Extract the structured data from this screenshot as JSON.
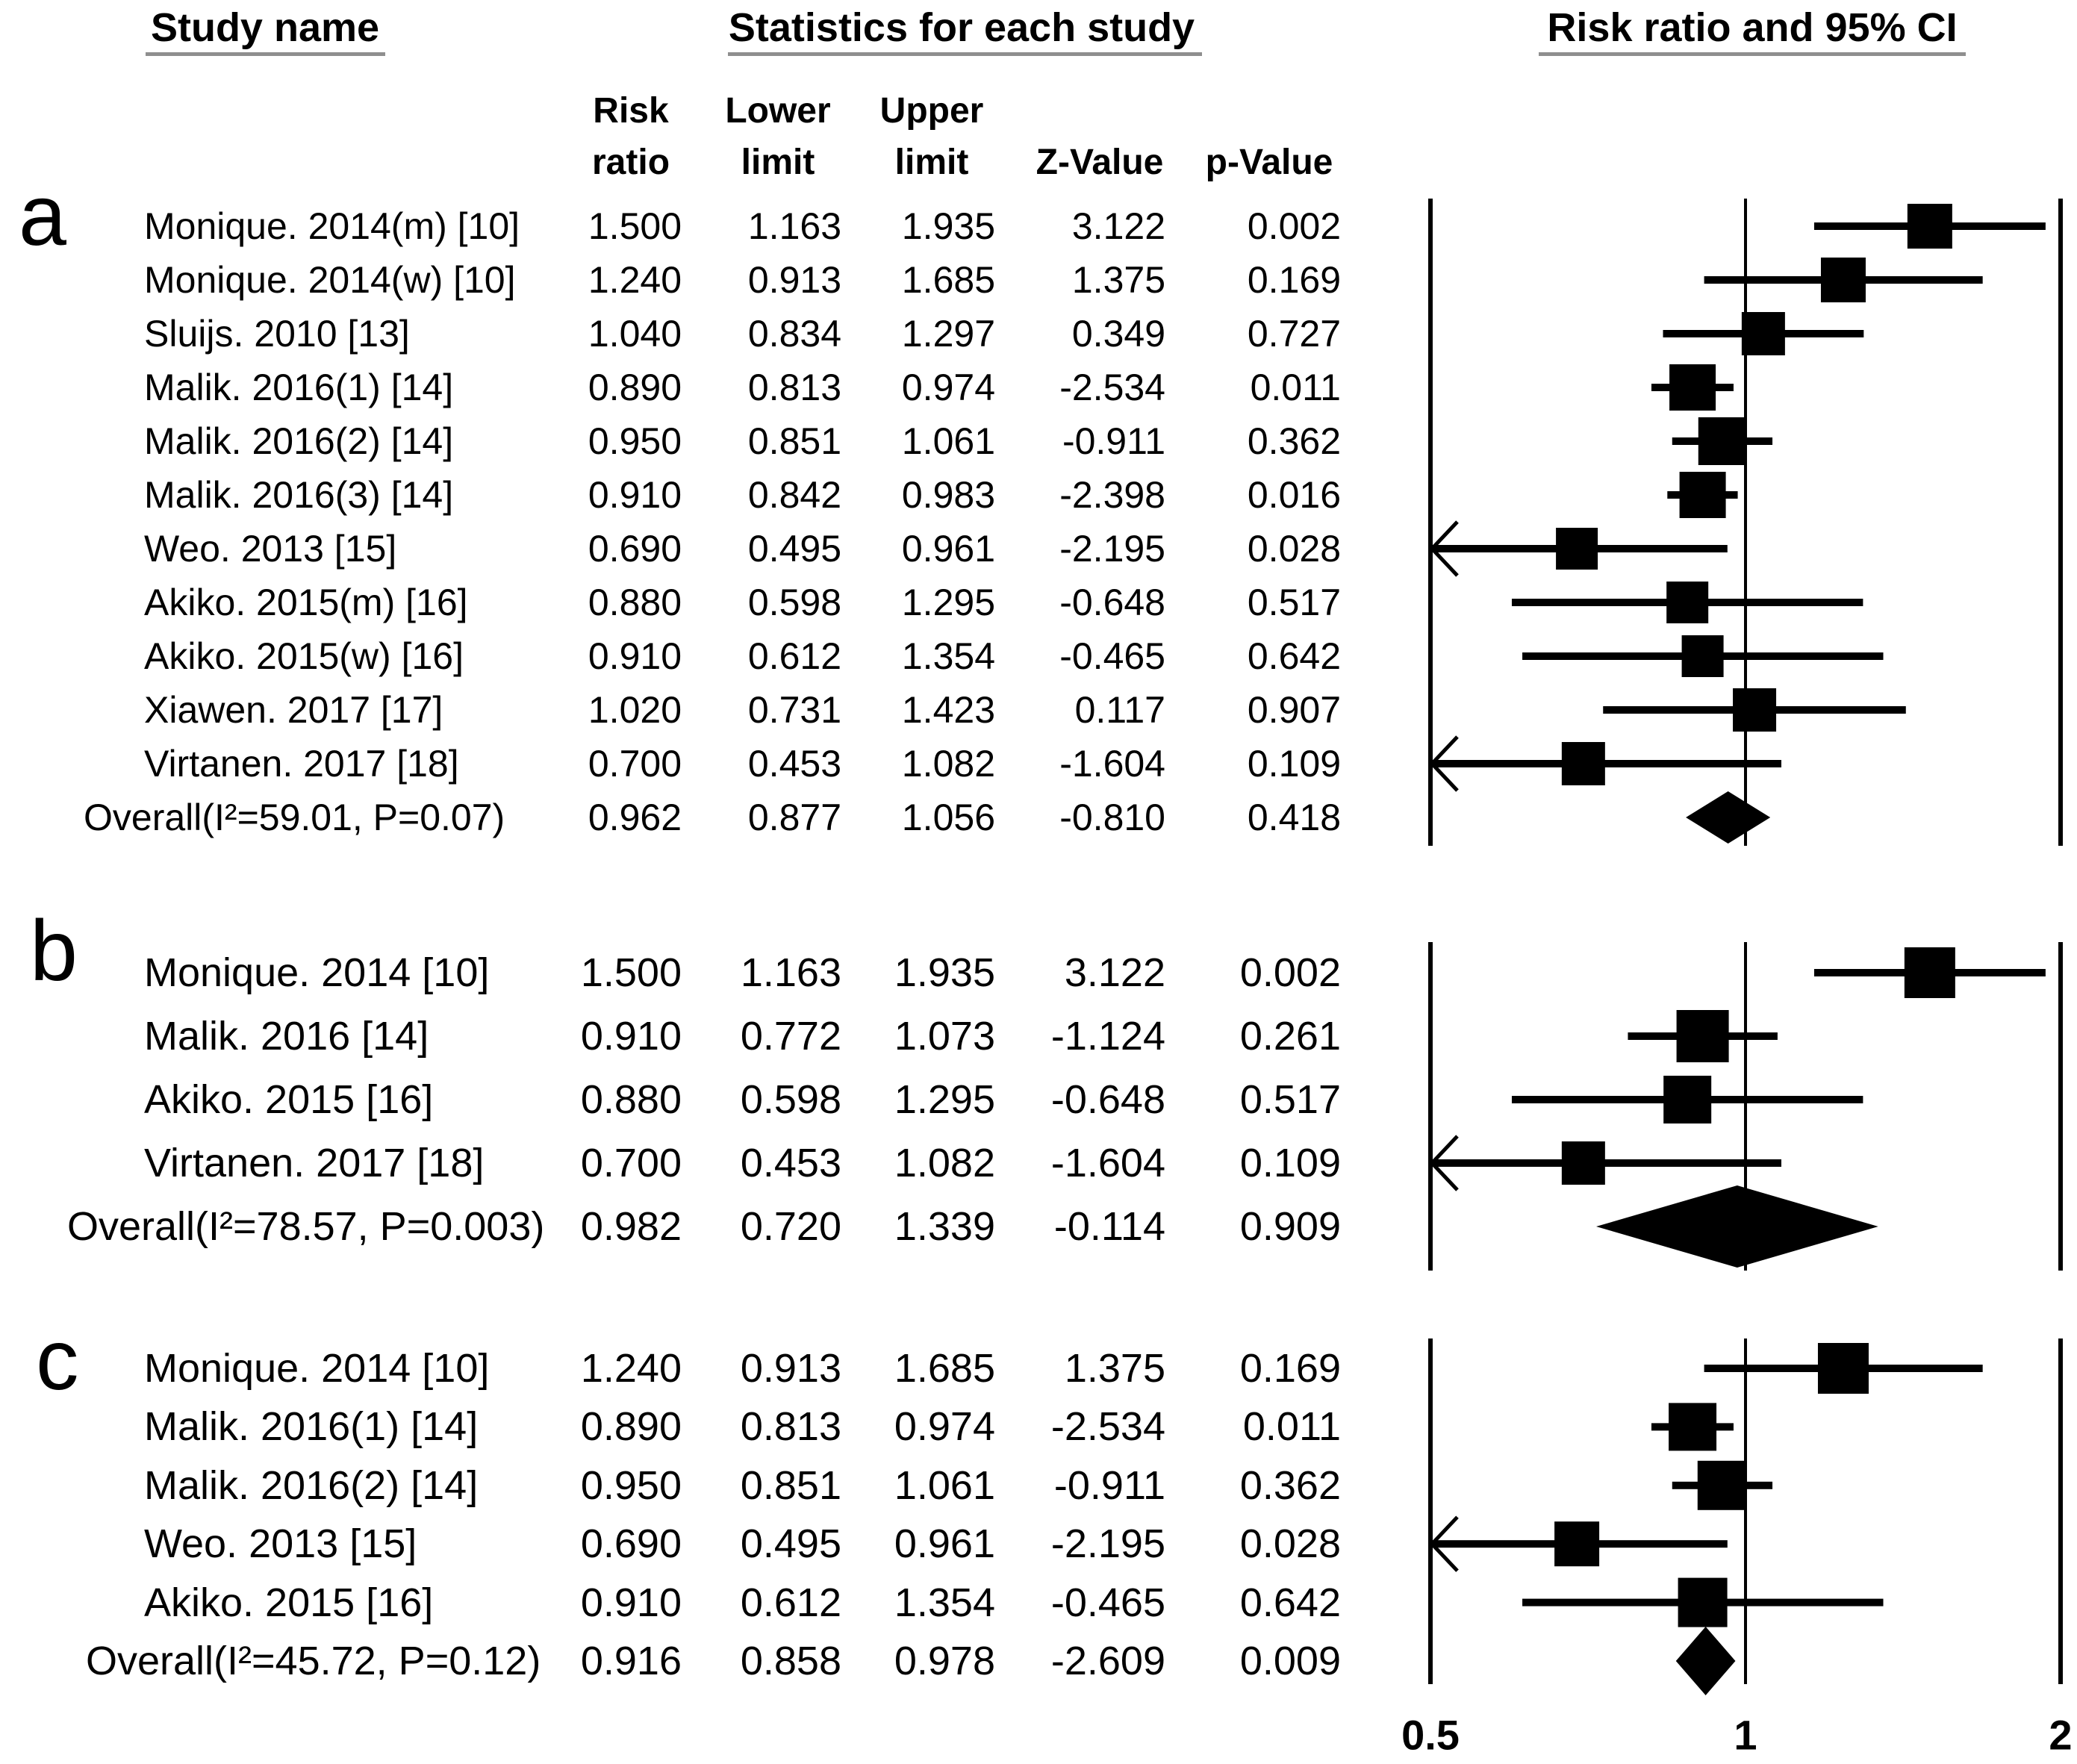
{
  "header": {
    "study": "Study name",
    "stats": "Statistics for each study",
    "plot": "Risk ratio and 95% CI"
  },
  "stat_columns": [
    "Risk\nratio",
    "Lower\nlimit",
    "Upper\nlimit",
    "Z-Value",
    "p-Value"
  ],
  "x_axis": {
    "scale": "log",
    "tick_labels": [
      "0.5",
      "1",
      "2"
    ],
    "tick_values": [
      0.5,
      1,
      2
    ],
    "range": [
      0.5,
      2
    ]
  },
  "chart_data": [
    {
      "panel": "a",
      "type": "forest",
      "studies": [
        {
          "name": "Monique. 2014(m) [10]",
          "risk_ratio": "1.500",
          "lower": "1.163",
          "upper": "1.935",
          "z": "3.122",
          "p": "0.002",
          "size": 60
        },
        {
          "name": "Monique. 2014(w) [10]",
          "risk_ratio": "1.240",
          "lower": "0.913",
          "upper": "1.685",
          "z": "1.375",
          "p": "0.169",
          "size": 60
        },
        {
          "name": "Sluijs. 2010 [13]",
          "risk_ratio": "1.040",
          "lower": "0.834",
          "upper": "1.297",
          "z": "0.349",
          "p": "0.727",
          "size": 58
        },
        {
          "name": "Malik. 2016(1) [14]",
          "risk_ratio": "0.890",
          "lower": "0.813",
          "upper": "0.974",
          "z": "-2.534",
          "p": "0.011",
          "size": 62
        },
        {
          "name": "Malik. 2016(2) [14]",
          "risk_ratio": "0.950",
          "lower": "0.851",
          "upper": "1.061",
          "z": "-0.911",
          "p": "0.362",
          "size": 64
        },
        {
          "name": "Malik. 2016(3) [14]",
          "risk_ratio": "0.910",
          "lower": "0.842",
          "upper": "0.983",
          "z": "-2.398",
          "p": "0.016",
          "size": 62
        },
        {
          "name": "Weo. 2013 [15]",
          "risk_ratio": "0.690",
          "lower": "0.495",
          "upper": "0.961",
          "z": "-2.195",
          "p": "0.028",
          "size": 56
        },
        {
          "name": "Akiko. 2015(m) [16]",
          "risk_ratio": "0.880",
          "lower": "0.598",
          "upper": "1.295",
          "z": "-0.648",
          "p": "0.517",
          "size": 56
        },
        {
          "name": "Akiko. 2015(w) [16]",
          "risk_ratio": "0.910",
          "lower": "0.612",
          "upper": "1.354",
          "z": "-0.465",
          "p": "0.642",
          "size": 56
        },
        {
          "name": "Xiawen. 2017 [17]",
          "risk_ratio": "1.020",
          "lower": "0.731",
          "upper": "1.423",
          "z": "0.117",
          "p": "0.907",
          "size": 58
        },
        {
          "name": "Virtanen. 2017 [18]",
          "risk_ratio": "0.700",
          "lower": "0.453",
          "upper": "1.082",
          "z": "-1.604",
          "p": "0.109",
          "size": 58
        }
      ],
      "overall": {
        "name": "Overall(I²=59.01, P=0.07)",
        "risk_ratio": "0.962",
        "lower": "0.877",
        "upper": "1.056",
        "z": "-0.810",
        "p": "0.418"
      }
    },
    {
      "panel": "b",
      "type": "forest",
      "studies": [
        {
          "name": "Monique. 2014 [10]",
          "risk_ratio": "1.500",
          "lower": "1.163",
          "upper": "1.935",
          "z": "3.122",
          "p": "0.002",
          "size": 68
        },
        {
          "name": "Malik. 2016 [14]",
          "risk_ratio": "0.910",
          "lower": "0.772",
          "upper": "1.073",
          "z": "-1.124",
          "p": "0.261",
          "size": 70
        },
        {
          "name": "Akiko. 2015 [16]",
          "risk_ratio": "0.880",
          "lower": "0.598",
          "upper": "1.295",
          "z": "-0.648",
          "p": "0.517",
          "size": 64
        },
        {
          "name": "Virtanen. 2017 [18]",
          "risk_ratio": "0.700",
          "lower": "0.453",
          "upper": "1.082",
          "z": "-1.604",
          "p": "0.109",
          "size": 58
        }
      ],
      "overall": {
        "name": "Overall(I²=78.57, P=0.003)",
        "risk_ratio": "0.982",
        "lower": "0.720",
        "upper": "1.339",
        "z": "-0.114",
        "p": "0.909"
      }
    },
    {
      "panel": "c",
      "type": "forest",
      "studies": [
        {
          "name": "Monique. 2014 [10]",
          "risk_ratio": "1.240",
          "lower": "0.913",
          "upper": "1.685",
          "z": "1.375",
          "p": "0.169",
          "size": 68
        },
        {
          "name": "Malik. 2016(1) [14]",
          "risk_ratio": "0.890",
          "lower": "0.813",
          "upper": "0.974",
          "z": "-2.534",
          "p": "0.011",
          "size": 64
        },
        {
          "name": "Malik. 2016(2) [14]",
          "risk_ratio": "0.950",
          "lower": "0.851",
          "upper": "1.061",
          "z": "-0.911",
          "p": "0.362",
          "size": 66
        },
        {
          "name": "Weo. 2013 [15]",
          "risk_ratio": "0.690",
          "lower": "0.495",
          "upper": "0.961",
          "z": "-2.195",
          "p": "0.028",
          "size": 60
        },
        {
          "name": "Akiko. 2015 [16]",
          "risk_ratio": "0.910",
          "lower": "0.612",
          "upper": "1.354",
          "z": "-0.465",
          "p": "0.642",
          "size": 66
        }
      ],
      "overall": {
        "name": "Overall(I²=45.72, P=0.12)",
        "risk_ratio": "0.916",
        "lower": "0.858",
        "upper": "0.978",
        "z": "-2.609",
        "p": "0.009"
      }
    }
  ]
}
